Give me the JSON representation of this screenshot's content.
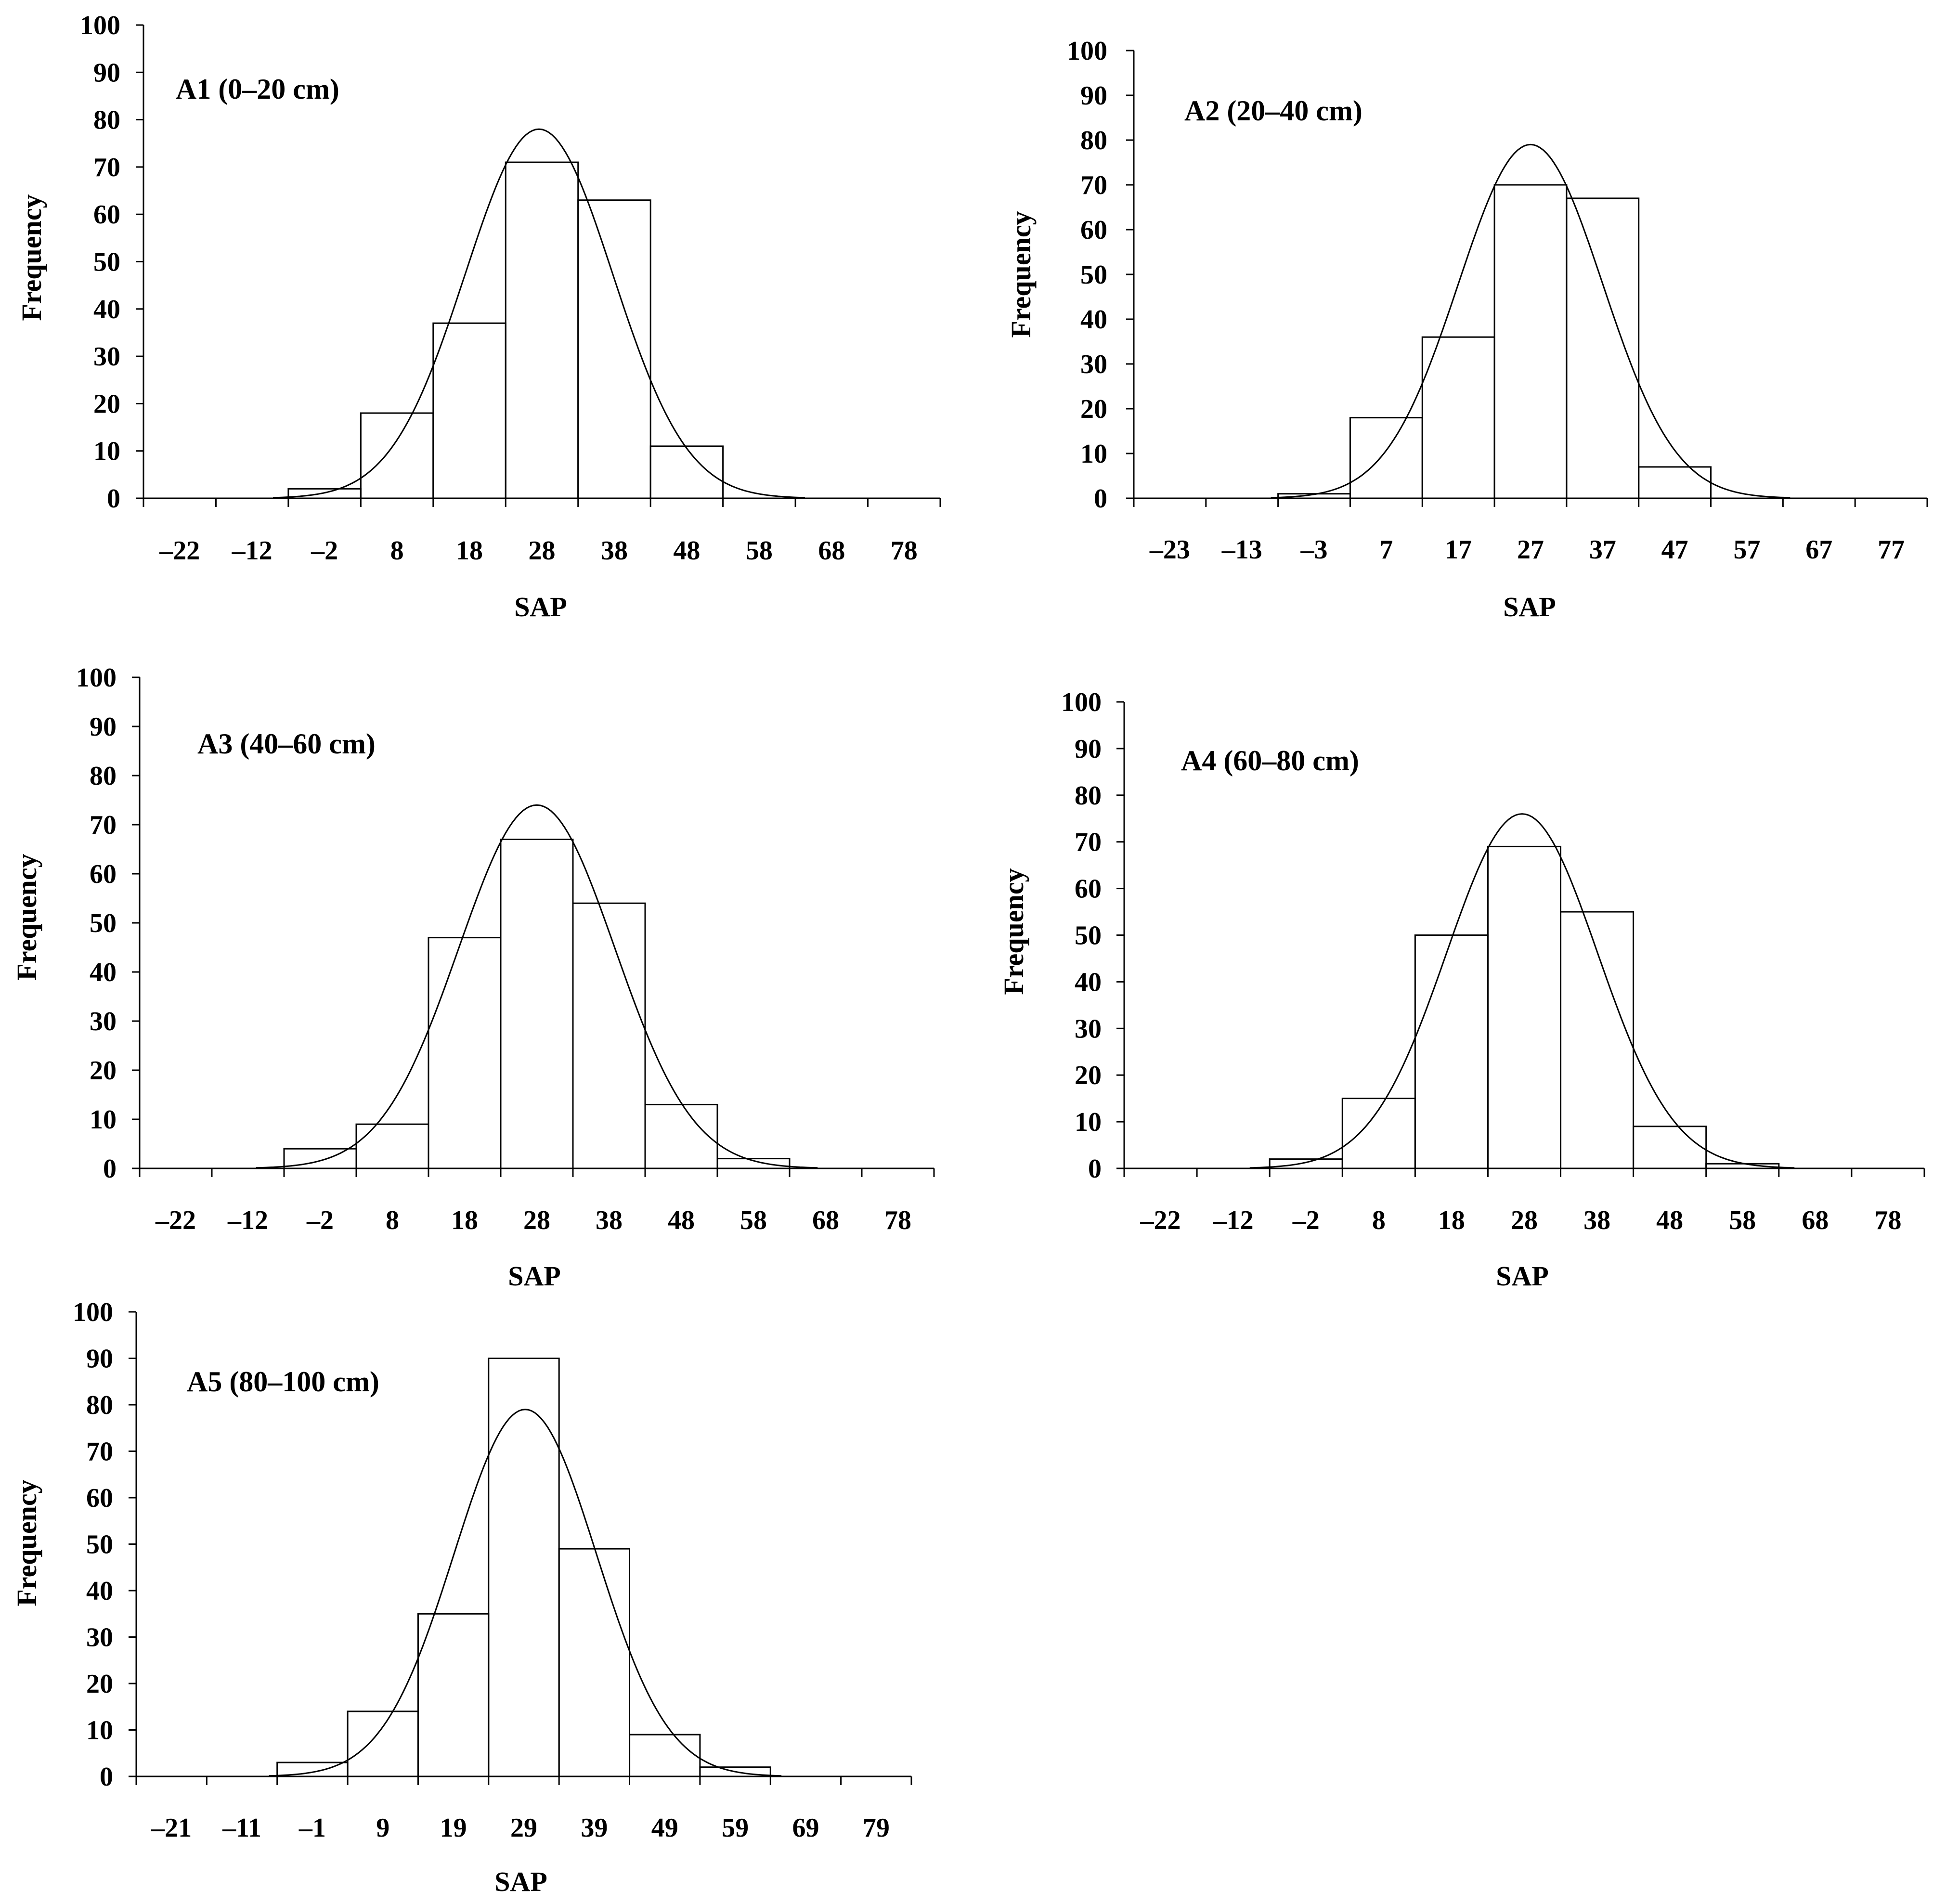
{
  "chart_data": [
    {
      "id": "A1",
      "type": "bar",
      "title": "A1 (0–20 cm)",
      "xlabel": "SAP",
      "ylabel": "Frequency",
      "ylim": [
        0,
        100
      ],
      "yticks": [
        "0",
        "10",
        "20",
        "30",
        "40",
        "50",
        "60",
        "70",
        "80",
        "90",
        "100"
      ],
      "x_tick_labels": [
        "–22",
        "–12",
        "–2",
        "8",
        "18",
        "28",
        "38",
        "48",
        "58",
        "68",
        "78"
      ],
      "x_tick_values": [
        -22,
        -12,
        -2,
        8,
        18,
        28,
        38,
        48,
        58,
        68,
        78
      ],
      "bin_edges": [
        -7,
        3,
        13,
        23,
        33,
        43,
        53,
        63
      ],
      "values": [
        2,
        18,
        37,
        71,
        63,
        11,
        0
      ],
      "normal_curve": {
        "mean": 27.6,
        "sd": 10.2,
        "peak": 78
      }
    },
    {
      "id": "A2",
      "type": "bar",
      "title": "A2 (20–40 cm)",
      "xlabel": "SAP",
      "ylabel": "Frequency",
      "ylim": [
        0,
        100
      ],
      "yticks": [
        "0",
        "10",
        "20",
        "30",
        "40",
        "50",
        "60",
        "70",
        "80",
        "90",
        "100"
      ],
      "x_tick_labels": [
        "–23",
        "–13",
        "–3",
        "7",
        "17",
        "27",
        "37",
        "47",
        "57",
        "67",
        "77"
      ],
      "x_tick_values": [
        -23,
        -13,
        -3,
        7,
        17,
        27,
        37,
        47,
        57,
        67,
        77
      ],
      "bin_edges": [
        -8,
        2,
        12,
        22,
        32,
        42,
        52,
        62
      ],
      "values": [
        1,
        18,
        36,
        70,
        67,
        7,
        0
      ],
      "normal_curve": {
        "mean": 27,
        "sd": 10,
        "peak": 79
      }
    },
    {
      "id": "A3",
      "type": "bar",
      "title": "A3 (40–60 cm)",
      "xlabel": "SAP",
      "ylabel": "Frequency",
      "ylim": [
        0,
        100
      ],
      "yticks": [
        "0",
        "10",
        "20",
        "30",
        "40",
        "50",
        "60",
        "70",
        "80",
        "90",
        "100"
      ],
      "x_tick_labels": [
        "–22",
        "–12",
        "–2",
        "8",
        "18",
        "28",
        "38",
        "48",
        "58",
        "68",
        "78"
      ],
      "x_tick_values": [
        -22,
        -12,
        -2,
        8,
        18,
        28,
        38,
        48,
        58,
        68,
        78
      ],
      "bin_edges": [
        -7,
        3,
        13,
        23,
        33,
        43,
        53,
        63
      ],
      "values": [
        4,
        9,
        47,
        67,
        54,
        13,
        2
      ],
      "normal_curve": {
        "mean": 28,
        "sd": 10.8,
        "peak": 74
      }
    },
    {
      "id": "A4",
      "type": "bar",
      "title": "A4 (60–80 cm)",
      "xlabel": "SAP",
      "ylabel": "Frequency",
      "ylim": [
        0,
        100
      ],
      "yticks": [
        "0",
        "10",
        "20",
        "30",
        "40",
        "50",
        "60",
        "70",
        "80",
        "90",
        "100"
      ],
      "x_tick_labels": [
        "–22",
        "–12",
        "–2",
        "8",
        "18",
        "28",
        "38",
        "48",
        "58",
        "68",
        "78"
      ],
      "x_tick_values": [
        -22,
        -12,
        -2,
        8,
        18,
        28,
        38,
        48,
        58,
        68,
        78
      ],
      "bin_edges": [
        -7,
        3,
        13,
        23,
        33,
        43,
        53,
        63
      ],
      "values": [
        2,
        15,
        50,
        69,
        55,
        9,
        1
      ],
      "normal_curve": {
        "mean": 27.7,
        "sd": 10.4,
        "peak": 76
      }
    },
    {
      "id": "A5",
      "type": "bar",
      "title": "A5 (80–100 cm)",
      "xlabel": "SAP",
      "ylabel": "Frequency",
      "ylim": [
        0,
        100
      ],
      "yticks": [
        "0",
        "10",
        "20",
        "30",
        "40",
        "50",
        "60",
        "70",
        "80",
        "90",
        "100"
      ],
      "x_tick_labels": [
        "–21",
        "–11",
        "–1",
        "9",
        "19",
        "29",
        "39",
        "49",
        "59",
        "69",
        "79"
      ],
      "x_tick_values": [
        -21,
        -11,
        -1,
        9,
        19,
        29,
        39,
        49,
        59,
        69,
        79
      ],
      "bin_edges": [
        -6,
        4,
        14,
        24,
        34,
        44,
        54,
        64
      ],
      "values": [
        3,
        14,
        35,
        90,
        49,
        9,
        2
      ],
      "normal_curve": {
        "mean": 29.2,
        "sd": 10.1,
        "peak": 79
      }
    }
  ]
}
